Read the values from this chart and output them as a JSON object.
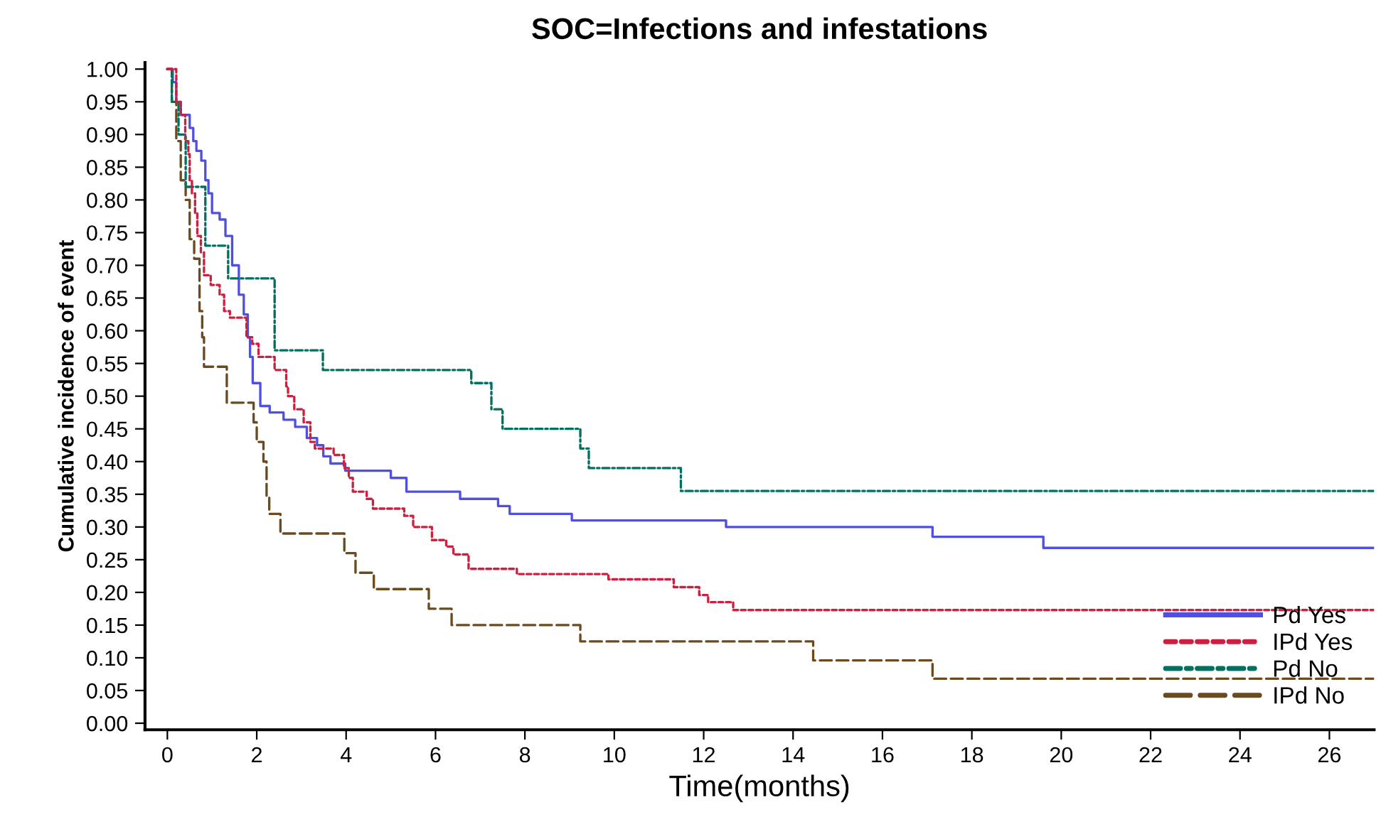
{
  "chart_data": {
    "type": "step",
    "title": "SOC=Infections and infestations",
    "xlabel": "Time(months)",
    "ylabel": "Cumulative incidence of event",
    "xlim": [
      -0.5,
      27
    ],
    "ylim": [
      -0.01,
      1.01
    ],
    "xticks": [
      0,
      2,
      4,
      6,
      8,
      10,
      12,
      14,
      16,
      18,
      20,
      22,
      24,
      26
    ],
    "yticks": [
      {
        "value": 0,
        "label": "0.00"
      },
      {
        "value": 0.05,
        "label": "0.05"
      },
      {
        "value": 0.1,
        "label": "0.10"
      },
      {
        "value": 0.15,
        "label": "0.15"
      },
      {
        "value": 0.2,
        "label": "0.20"
      },
      {
        "value": 0.25,
        "label": "0.25"
      },
      {
        "value": 0.3,
        "label": "0.30"
      },
      {
        "value": 0.35,
        "label": "0.35"
      },
      {
        "value": 0.4,
        "label": "0.40"
      },
      {
        "value": 0.45,
        "label": "0.45"
      },
      {
        "value": 0.5,
        "label": "0.50"
      },
      {
        "value": 0.55,
        "label": "0.55"
      },
      {
        "value": 0.6,
        "label": "0.60"
      },
      {
        "value": 0.65,
        "label": "0.65"
      },
      {
        "value": 0.7,
        "label": "0.70"
      },
      {
        "value": 0.75,
        "label": "0.75"
      },
      {
        "value": 0.8,
        "label": "0.80"
      },
      {
        "value": 0.85,
        "label": "0.85"
      },
      {
        "value": 0.9,
        "label": "0.90"
      },
      {
        "value": 0.95,
        "label": "0.95"
      },
      {
        "value": 1,
        "label": "1.00"
      }
    ],
    "grid": false,
    "legend": "bottom right",
    "series": [
      {
        "name": "Pd Yes",
        "color": "#5050e0",
        "line_style": "solid",
        "x": [
          0,
          0.12,
          0.2,
          0.3,
          0.5,
          0.58,
          0.65,
          0.76,
          0.85,
          0.92,
          1.0,
          1.17,
          1.3,
          1.45,
          1.6,
          1.71,
          1.8,
          1.85,
          1.91,
          2.08,
          2.29,
          2.6,
          2.86,
          3.12,
          3.35,
          3.49,
          3.65,
          3.98,
          5.0,
          5.35,
          6.55,
          7.4,
          7.66,
          9.05,
          12.5,
          17.12,
          19.6,
          27
        ],
        "values": [
          1.0,
          0.98,
          0.95,
          0.93,
          0.91,
          0.89,
          0.875,
          0.86,
          0.83,
          0.81,
          0.78,
          0.77,
          0.745,
          0.7,
          0.655,
          0.625,
          0.59,
          0.56,
          0.52,
          0.485,
          0.475,
          0.464,
          0.453,
          0.436,
          0.425,
          0.408,
          0.397,
          0.386,
          0.375,
          0.354,
          0.343,
          0.332,
          0.32,
          0.31,
          0.3,
          0.285,
          0.268,
          0.268
        ]
      },
      {
        "name": "IPd Yes",
        "color": "#cc2040",
        "line_style": "dashed",
        "x": [
          0,
          0.2,
          0.3,
          0.4,
          0.47,
          0.5,
          0.55,
          0.62,
          0.67,
          0.75,
          0.82,
          0.97,
          1.17,
          1.27,
          1.4,
          1.77,
          1.9,
          2.04,
          2.4,
          2.66,
          2.7,
          2.84,
          3.05,
          3.2,
          3.3,
          3.72,
          3.95,
          4.06,
          4.15,
          4.46,
          4.6,
          5.3,
          5.5,
          5.92,
          6.24,
          6.4,
          6.74,
          7.82,
          9.87,
          11.33,
          11.9,
          12.1,
          12.66,
          27
        ],
        "values": [
          1.0,
          0.95,
          0.93,
          0.89,
          0.87,
          0.83,
          0.81,
          0.78,
          0.745,
          0.72,
          0.685,
          0.67,
          0.655,
          0.63,
          0.62,
          0.59,
          0.58,
          0.56,
          0.54,
          0.515,
          0.5,
          0.48,
          0.46,
          0.43,
          0.42,
          0.41,
          0.39,
          0.375,
          0.354,
          0.343,
          0.328,
          0.317,
          0.3,
          0.28,
          0.27,
          0.258,
          0.236,
          0.228,
          0.22,
          0.208,
          0.196,
          0.185,
          0.173,
          0.173
        ]
      },
      {
        "name": "Pd No",
        "color": "#007060",
        "line_style": "dashdot",
        "x": [
          0,
          0.1,
          0.25,
          0.41,
          0.85,
          1.36,
          2.4,
          3.48,
          6.8,
          7.25,
          7.5,
          9.24,
          9.43,
          11.49,
          27
        ],
        "values": [
          1.0,
          0.95,
          0.9,
          0.82,
          0.73,
          0.68,
          0.57,
          0.54,
          0.52,
          0.48,
          0.45,
          0.42,
          0.39,
          0.355,
          0.355
        ]
      },
      {
        "name": "IPd No",
        "color": "#6b4a1e",
        "line_style": "longdash",
        "x": [
          0,
          0.1,
          0.2,
          0.3,
          0.41,
          0.5,
          0.6,
          0.72,
          0.78,
          0.82,
          1.33,
          1.93,
          2.0,
          2.15,
          2.22,
          2.28,
          2.53,
          3.96,
          4.21,
          4.62,
          5.85,
          6.36,
          9.24,
          14.45,
          17.12,
          27
        ],
        "values": [
          1.0,
          0.95,
          0.89,
          0.83,
          0.8,
          0.74,
          0.71,
          0.63,
          0.59,
          0.545,
          0.49,
          0.46,
          0.43,
          0.4,
          0.345,
          0.32,
          0.29,
          0.26,
          0.23,
          0.205,
          0.175,
          0.15,
          0.125,
          0.096,
          0.068,
          0.068
        ]
      }
    ]
  }
}
